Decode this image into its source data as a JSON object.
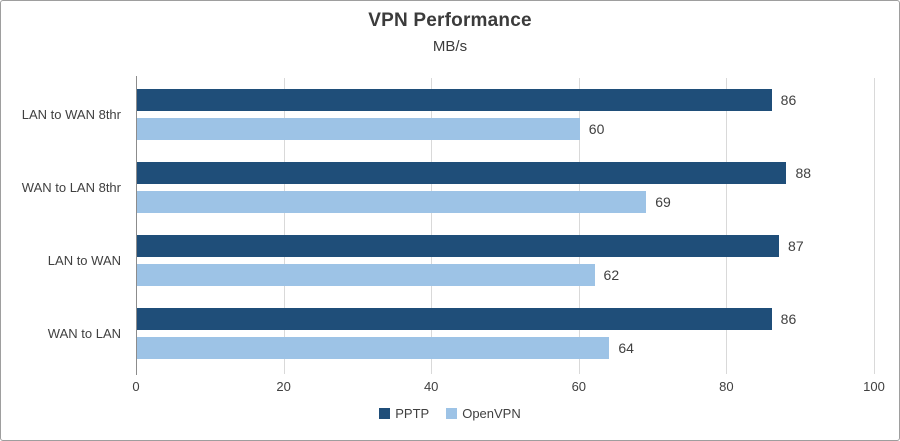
{
  "chart_data": {
    "type": "bar",
    "orientation": "horizontal",
    "title": "VPN Performance",
    "subtitle": "MB/s",
    "categories": [
      "LAN to WAN 8thr",
      "WAN to LAN 8thr",
      "LAN to WAN",
      "WAN to LAN"
    ],
    "series": [
      {
        "name": "PPTP",
        "color": "#1F4E79",
        "values": [
          86,
          88,
          87,
          86
        ]
      },
      {
        "name": "OpenVPN",
        "color": "#9DC3E6",
        "values": [
          60,
          69,
          62,
          64
        ]
      }
    ],
    "xlim": [
      0,
      100
    ],
    "x_ticks": [
      0,
      20,
      40,
      60,
      80,
      100
    ],
    "grid": "vertical-gridlines-on",
    "legend_position": "bottom",
    "data_labels": true
  },
  "colors": {
    "background": "#FFFFFF",
    "border": "#9E9E9E",
    "gridline": "#D9D9D9",
    "axis_line": "#8C8C8C",
    "text": "#404040",
    "title_text": "#3B3B3B"
  }
}
